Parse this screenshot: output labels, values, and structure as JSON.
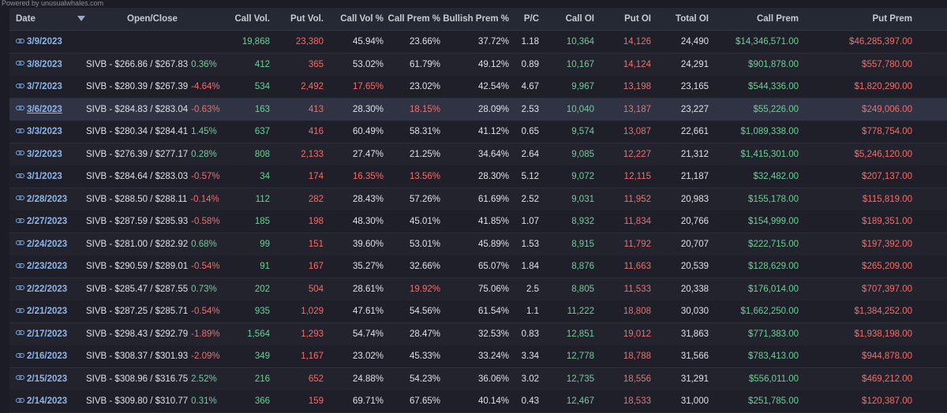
{
  "powered_by": "Powered by unusualwhales.com",
  "colors": {
    "green": "#6fcf97",
    "red": "#ef6f6c",
    "date_link": "#8fb6e8"
  },
  "header": {
    "date": "Date",
    "open_close": "Open/Close",
    "call_vol": "Call Vol.",
    "put_vol": "Put Vol.",
    "call_vol_pct": "Call Vol %",
    "call_prem_pct": "Call Prem %",
    "bullish_prem_pct": "Bullish Prem %",
    "pc": "P/C",
    "call_oi": "Call OI",
    "put_oi": "Put OI",
    "total_oi": "Total OI",
    "call_prem": "Call Prem",
    "put_prem": "Put Prem"
  },
  "rows": [
    {
      "date": "3/9/2023",
      "open_close": "",
      "change": "",
      "call_vol": "19,868",
      "put_vol": "23,380",
      "call_vol_pct": "45.94%",
      "call_prem_pct": "23.66%",
      "bullish_prem_pct": "37.72%",
      "pc": "1.18",
      "call_oi": "10,364",
      "put_oi": "14,126",
      "total_oi": "24,490",
      "call_prem": "$14,346,571.00",
      "put_prem": "$46,285,397.00"
    },
    {
      "date": "3/8/2023",
      "open_close": "SIVB - $266.86 / $267.83",
      "change": "0.36%",
      "call_vol": "412",
      "put_vol": "365",
      "call_vol_pct": "53.02%",
      "call_prem_pct": "61.79%",
      "bullish_prem_pct": "49.12%",
      "pc": "0.89",
      "call_oi": "10,167",
      "put_oi": "14,124",
      "total_oi": "24,291",
      "call_prem": "$901,878.00",
      "put_prem": "$557,780.00"
    },
    {
      "date": "3/7/2023",
      "open_close": "SIVB - $280.39 / $267.39",
      "change": "-4.64%",
      "call_vol": "534",
      "put_vol": "2,492",
      "call_vol_pct": "17.65%",
      "call_prem_pct": "23.02%",
      "bullish_prem_pct": "42.54%",
      "pc": "4.67",
      "call_oi": "9,967",
      "put_oi": "13,198",
      "total_oi": "23,165",
      "call_prem": "$544,336.00",
      "put_prem": "$1,820,290.00"
    },
    {
      "date": "3/6/2023",
      "open_close": "SIVB - $284.83 / $283.04",
      "change": "-0.63%",
      "call_vol": "163",
      "put_vol": "413",
      "call_vol_pct": "28.30%",
      "call_prem_pct": "18.15%",
      "bullish_prem_pct": "28.09%",
      "pc": "2.53",
      "call_oi": "10,040",
      "put_oi": "13,187",
      "total_oi": "23,227",
      "call_prem": "$55,226.00",
      "put_prem": "$249,006.00"
    },
    {
      "date": "3/3/2023",
      "open_close": "SIVB - $280.34 / $284.41",
      "change": "1.45%",
      "call_vol": "637",
      "put_vol": "416",
      "call_vol_pct": "60.49%",
      "call_prem_pct": "58.31%",
      "bullish_prem_pct": "41.12%",
      "pc": "0.65",
      "call_oi": "9,574",
      "put_oi": "13,087",
      "total_oi": "22,661",
      "call_prem": "$1,089,338.00",
      "put_prem": "$778,754.00"
    },
    {
      "date": "3/2/2023",
      "open_close": "SIVB - $276.39 / $277.17",
      "change": "0.28%",
      "call_vol": "808",
      "put_vol": "2,133",
      "call_vol_pct": "27.47%",
      "call_prem_pct": "21.25%",
      "bullish_prem_pct": "34.64%",
      "pc": "2.64",
      "call_oi": "9,085",
      "put_oi": "12,227",
      "total_oi": "21,312",
      "call_prem": "$1,415,301.00",
      "put_prem": "$5,246,120.00"
    },
    {
      "date": "3/1/2023",
      "open_close": "SIVB - $284.64 / $283.03",
      "change": "-0.57%",
      "call_vol": "34",
      "put_vol": "174",
      "call_vol_pct": "16.35%",
      "call_prem_pct": "13.56%",
      "bullish_prem_pct": "28.30%",
      "pc": "5.12",
      "call_oi": "9,072",
      "put_oi": "12,115",
      "total_oi": "21,187",
      "call_prem": "$32,482.00",
      "put_prem": "$207,137.00"
    },
    {
      "date": "2/28/2023",
      "open_close": "SIVB - $288.50 / $288.11",
      "change": "-0.14%",
      "call_vol": "112",
      "put_vol": "282",
      "call_vol_pct": "28.43%",
      "call_prem_pct": "57.26%",
      "bullish_prem_pct": "61.69%",
      "pc": "2.52",
      "call_oi": "9,031",
      "put_oi": "11,952",
      "total_oi": "20,983",
      "call_prem": "$155,178.00",
      "put_prem": "$115,819.00"
    },
    {
      "date": "2/27/2023",
      "open_close": "SIVB - $287.59 / $285.93",
      "change": "-0.58%",
      "call_vol": "185",
      "put_vol": "198",
      "call_vol_pct": "48.30%",
      "call_prem_pct": "45.01%",
      "bullish_prem_pct": "41.85%",
      "pc": "1.07",
      "call_oi": "8,932",
      "put_oi": "11,834",
      "total_oi": "20,766",
      "call_prem": "$154,999.00",
      "put_prem": "$189,351.00"
    },
    {
      "date": "2/24/2023",
      "open_close": "SIVB - $281.00 / $282.92",
      "change": "0.68%",
      "call_vol": "99",
      "put_vol": "151",
      "call_vol_pct": "39.60%",
      "call_prem_pct": "53.01%",
      "bullish_prem_pct": "45.89%",
      "pc": "1.53",
      "call_oi": "8,915",
      "put_oi": "11,792",
      "total_oi": "20,707",
      "call_prem": "$222,715.00",
      "put_prem": "$197,392.00"
    },
    {
      "date": "2/23/2023",
      "open_close": "SIVB - $290.59 / $289.01",
      "change": "-0.54%",
      "call_vol": "91",
      "put_vol": "167",
      "call_vol_pct": "35.27%",
      "call_prem_pct": "32.66%",
      "bullish_prem_pct": "65.07%",
      "pc": "1.84",
      "call_oi": "8,876",
      "put_oi": "11,663",
      "total_oi": "20,539",
      "call_prem": "$128,629.00",
      "put_prem": "$265,209.00"
    },
    {
      "date": "2/22/2023",
      "open_close": "SIVB - $285.47 / $287.55",
      "change": "0.73%",
      "call_vol": "202",
      "put_vol": "504",
      "call_vol_pct": "28.61%",
      "call_prem_pct": "19.92%",
      "bullish_prem_pct": "75.06%",
      "pc": "2.5",
      "call_oi": "8,805",
      "put_oi": "11,533",
      "total_oi": "20,338",
      "call_prem": "$176,014.00",
      "put_prem": "$707,397.00"
    },
    {
      "date": "2/21/2023",
      "open_close": "SIVB - $287.25 / $285.71",
      "change": "-0.54%",
      "call_vol": "935",
      "put_vol": "1,029",
      "call_vol_pct": "47.61%",
      "call_prem_pct": "54.56%",
      "bullish_prem_pct": "61.54%",
      "pc": "1.1",
      "call_oi": "11,222",
      "put_oi": "18,808",
      "total_oi": "30,030",
      "call_prem": "$1,662,250.00",
      "put_prem": "$1,384,252.00"
    },
    {
      "date": "2/17/2023",
      "open_close": "SIVB - $298.43 / $292.79",
      "change": "-1.89%",
      "call_vol": "1,564",
      "put_vol": "1,293",
      "call_vol_pct": "54.74%",
      "call_prem_pct": "28.47%",
      "bullish_prem_pct": "32.53%",
      "pc": "0.83",
      "call_oi": "12,851",
      "put_oi": "19,012",
      "total_oi": "31,863",
      "call_prem": "$771,383.00",
      "put_prem": "$1,938,198.00"
    },
    {
      "date": "2/16/2023",
      "open_close": "SIVB - $308.37 / $301.93",
      "change": "-2.09%",
      "call_vol": "349",
      "put_vol": "1,167",
      "call_vol_pct": "23.02%",
      "call_prem_pct": "45.33%",
      "bullish_prem_pct": "33.24%",
      "pc": "3.34",
      "call_oi": "12,778",
      "put_oi": "18,788",
      "total_oi": "31,566",
      "call_prem": "$783,413.00",
      "put_prem": "$944,878.00"
    },
    {
      "date": "2/15/2023",
      "open_close": "SIVB - $308.96 / $316.75",
      "change": "2.52%",
      "call_vol": "216",
      "put_vol": "652",
      "call_vol_pct": "24.88%",
      "call_prem_pct": "54.23%",
      "bullish_prem_pct": "36.06%",
      "pc": "3.02",
      "call_oi": "12,735",
      "put_oi": "18,556",
      "total_oi": "31,291",
      "call_prem": "$556,011.00",
      "put_prem": "$469,212.00"
    },
    {
      "date": "2/14/2023",
      "open_close": "SIVB - $309.80 / $310.77",
      "change": "0.31%",
      "call_vol": "366",
      "put_vol": "159",
      "call_vol_pct": "69.71%",
      "call_prem_pct": "67.65%",
      "bullish_prem_pct": "40.14%",
      "pc": "0.43",
      "call_oi": "12,467",
      "put_oi": "18,533",
      "total_oi": "31,000",
      "call_prem": "$251,785.00",
      "put_prem": "$120,387.00"
    }
  ],
  "highlighted_row": 3
}
